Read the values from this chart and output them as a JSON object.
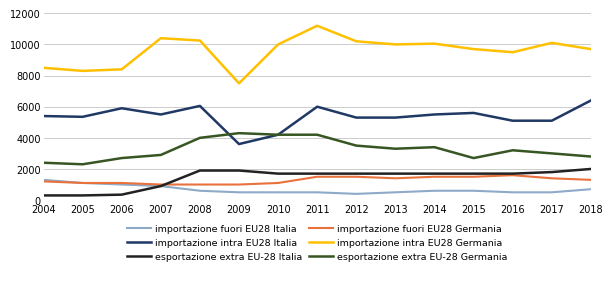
{
  "years": [
    2004,
    2005,
    2006,
    2007,
    2008,
    2009,
    2010,
    2011,
    2012,
    2013,
    2014,
    2015,
    2016,
    2017,
    2018
  ],
  "series": [
    {
      "label": "importazione fuori EU28 Italia",
      "values": [
        1300,
        1100,
        1000,
        900,
        600,
        500,
        500,
        500,
        400,
        500,
        600,
        600,
        500,
        500,
        700
      ],
      "color": "#8EAAC8",
      "linewidth": 1.5
    },
    {
      "label": "importazione fuori EU28 Germania",
      "values": [
        1200,
        1100,
        1100,
        1000,
        1000,
        1000,
        1100,
        1500,
        1500,
        1400,
        1500,
        1500,
        1600,
        1400,
        1300
      ],
      "color": "#E8713C",
      "linewidth": 1.5
    },
    {
      "label": "importazione intra EU28 Italia",
      "values": [
        5400,
        5350,
        5900,
        5500,
        6050,
        3600,
        4200,
        6000,
        5300,
        5300,
        5500,
        5600,
        5100,
        5100,
        6400
      ],
      "color": "#1F3864",
      "linewidth": 1.8
    },
    {
      "label": "importazione intra EU28 Germania",
      "values": [
        8500,
        8300,
        8400,
        10400,
        10250,
        7500,
        10000,
        11200,
        10200,
        10000,
        10050,
        9700,
        9500,
        10100,
        9700
      ],
      "color": "#FFC000",
      "linewidth": 1.8
    },
    {
      "label": "esportazione extra EU-28 Italia",
      "values": [
        300,
        300,
        350,
        900,
        1900,
        1900,
        1700,
        1700,
        1700,
        1700,
        1700,
        1700,
        1700,
        1800,
        2000
      ],
      "color": "#222222",
      "linewidth": 1.8
    },
    {
      "label": "esportazione extra EU-28 Germania",
      "values": [
        2400,
        2300,
        2700,
        2900,
        4000,
        4300,
        4200,
        4200,
        3500,
        3300,
        3400,
        2700,
        3200,
        3000,
        2800
      ],
      "color": "#375623",
      "linewidth": 1.8
    }
  ],
  "ylim": [
    0,
    12000
  ],
  "yticks": [
    0,
    2000,
    4000,
    6000,
    8000,
    10000,
    12000
  ],
  "background_color": "#ffffff",
  "grid_color": "#cccccc",
  "legend_order": [
    0,
    2,
    4,
    1,
    3,
    5
  ]
}
